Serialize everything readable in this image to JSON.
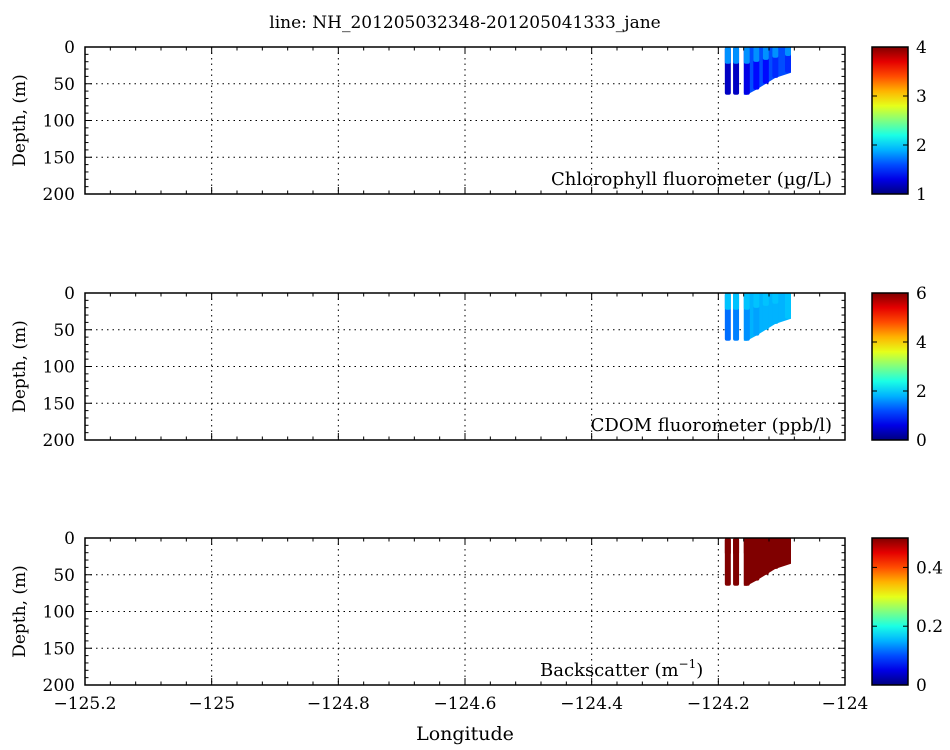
{
  "title": "line: NH_201205032348-201205041333_jane",
  "xlabel": "Longitude",
  "xticks": [
    "−125.2",
    "−125",
    "−124.8",
    "−124.6",
    "−124.4",
    "−124.2",
    "−124"
  ],
  "ylabel": "Depth, (m)",
  "yticks": [
    "0",
    "50",
    "100",
    "150",
    "200"
  ],
  "chart_data": [
    {
      "type": "scatter",
      "label": "Chlorophyll fluorometer (µg/L)",
      "xlim": [
        -125.2,
        -124.0
      ],
      "ylim": [
        200,
        0
      ],
      "y_inverted": true,
      "grid": true,
      "colorbar": {
        "range": [
          1,
          4
        ],
        "ticks": [
          "1",
          "2",
          "3",
          "4"
        ],
        "colormap": "jet"
      },
      "profiles": [
        {
          "lon": -124.185,
          "depth_max": 65,
          "value": 1.2
        },
        {
          "lon": -124.172,
          "depth_max": 65,
          "value": 1.2
        },
        {
          "lon": -124.155,
          "depth_max": 65,
          "value": 1.3
        },
        {
          "lon": -124.14,
          "depth_max": 58,
          "value": 1.4
        },
        {
          "lon": -124.125,
          "depth_max": 50,
          "value": 1.4
        },
        {
          "lon": -124.11,
          "depth_max": 42,
          "value": 1.5
        },
        {
          "lon": -124.09,
          "depth_max": 35,
          "value": 1.5
        }
      ],
      "surface_value": 1.8
    },
    {
      "type": "scatter",
      "label": "CDOM fluorometer (ppb/l)",
      "xlim": [
        -125.2,
        -124.0
      ],
      "ylim": [
        200,
        0
      ],
      "y_inverted": true,
      "grid": true,
      "colorbar": {
        "range": [
          0,
          6
        ],
        "ticks": [
          "0",
          "2",
          "4",
          "6"
        ],
        "colormap": "jet"
      },
      "profiles": [
        {
          "lon": -124.185,
          "depth_max": 65,
          "value": 1.4
        },
        {
          "lon": -124.172,
          "depth_max": 65,
          "value": 1.5
        },
        {
          "lon": -124.155,
          "depth_max": 65,
          "value": 1.6
        },
        {
          "lon": -124.14,
          "depth_max": 58,
          "value": 1.7
        },
        {
          "lon": -124.125,
          "depth_max": 50,
          "value": 1.8
        },
        {
          "lon": -124.11,
          "depth_max": 42,
          "value": 1.8
        },
        {
          "lon": -124.09,
          "depth_max": 35,
          "value": 1.9
        }
      ],
      "surface_value": 1.9
    },
    {
      "type": "scatter",
      "label_prefix": "Backscatter (m",
      "label_sup": "−1",
      "label_suffix": ")",
      "xlim": [
        -125.2,
        -124.0
      ],
      "ylim": [
        200,
        0
      ],
      "y_inverted": true,
      "grid": true,
      "colorbar": {
        "range": [
          0,
          0.5
        ],
        "ticks": [
          "0",
          "0.2",
          "0.4"
        ],
        "colormap": "jet"
      },
      "profiles": [
        {
          "lon": -124.185,
          "depth_max": 65,
          "value": 0.5
        },
        {
          "lon": -124.172,
          "depth_max": 65,
          "value": 0.5
        },
        {
          "lon": -124.155,
          "depth_max": 65,
          "value": 0.5
        },
        {
          "lon": -124.14,
          "depth_max": 58,
          "value": 0.5
        },
        {
          "lon": -124.125,
          "depth_max": 50,
          "value": 0.5
        },
        {
          "lon": -124.11,
          "depth_max": 42,
          "value": 0.5
        },
        {
          "lon": -124.09,
          "depth_max": 35,
          "value": 0.5
        }
      ],
      "surface_value": 0.5
    }
  ]
}
